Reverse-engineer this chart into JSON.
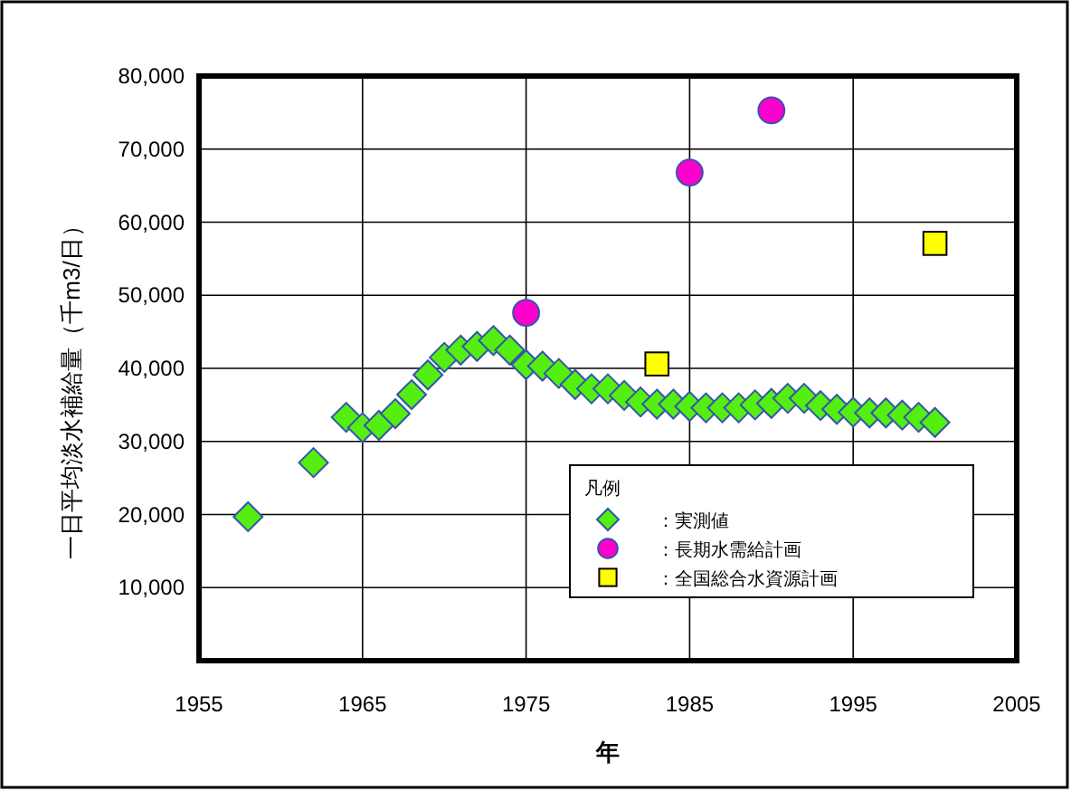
{
  "chart_data": {
    "type": "scatter",
    "xlabel": "年",
    "ylabel": "一日平均淡水補給量（千m3/日）",
    "legend_title": "凡例",
    "legend": "bottom right",
    "grid": true,
    "xlim": [
      1955,
      2005
    ],
    "xticks": [
      1955,
      1965,
      1975,
      1985,
      1995,
      2005
    ],
    "ylim": [
      0,
      80000
    ],
    "yticks": [
      {
        "value": 10000,
        "label": "10,000"
      },
      {
        "value": 20000,
        "label": "20,000"
      },
      {
        "value": 30000,
        "label": "30,000"
      },
      {
        "value": 40000,
        "label": "40,000"
      },
      {
        "value": 50000,
        "label": "50,000"
      },
      {
        "value": 60000,
        "label": "60,000"
      },
      {
        "value": 70000,
        "label": "70,000"
      },
      {
        "value": 80000,
        "label": "80,000"
      }
    ],
    "series": [
      {
        "name": "：実測値",
        "color": "#55ee11",
        "marker": "diamond",
        "x": [
          1958,
          1962,
          1964,
          1965,
          1966,
          1967,
          1968,
          1969,
          1970,
          1971,
          1972,
          1973,
          1974,
          1975,
          1976,
          1977,
          1978,
          1979,
          1980,
          1981,
          1982,
          1983,
          1984,
          1985,
          1986,
          1987,
          1988,
          1989,
          1990,
          1991,
          1992,
          1993,
          1994,
          1995,
          1996,
          1997,
          1998,
          1999,
          2000
        ],
        "values": [
          19700,
          27100,
          33300,
          31900,
          32200,
          33800,
          36400,
          39100,
          41500,
          42500,
          43000,
          43800,
          42500,
          40500,
          40300,
          39300,
          37800,
          37200,
          37200,
          36300,
          35400,
          35100,
          35100,
          34800,
          34600,
          34600,
          34600,
          35000,
          35200,
          35900,
          35900,
          34900,
          34400,
          34000,
          33900,
          33900,
          33600,
          33300,
          32600
        ]
      },
      {
        "name": "：長期水需給計画",
        "color": "#ff00cc",
        "marker": "circle",
        "x": [
          1975,
          1985,
          1990
        ],
        "values": [
          47600,
          66800,
          75300
        ]
      },
      {
        "name": "：全国総合水資源計画",
        "color": "#ffff00",
        "marker": "square",
        "x": [
          1983,
          2000
        ],
        "values": [
          40600,
          57100
        ]
      }
    ]
  }
}
